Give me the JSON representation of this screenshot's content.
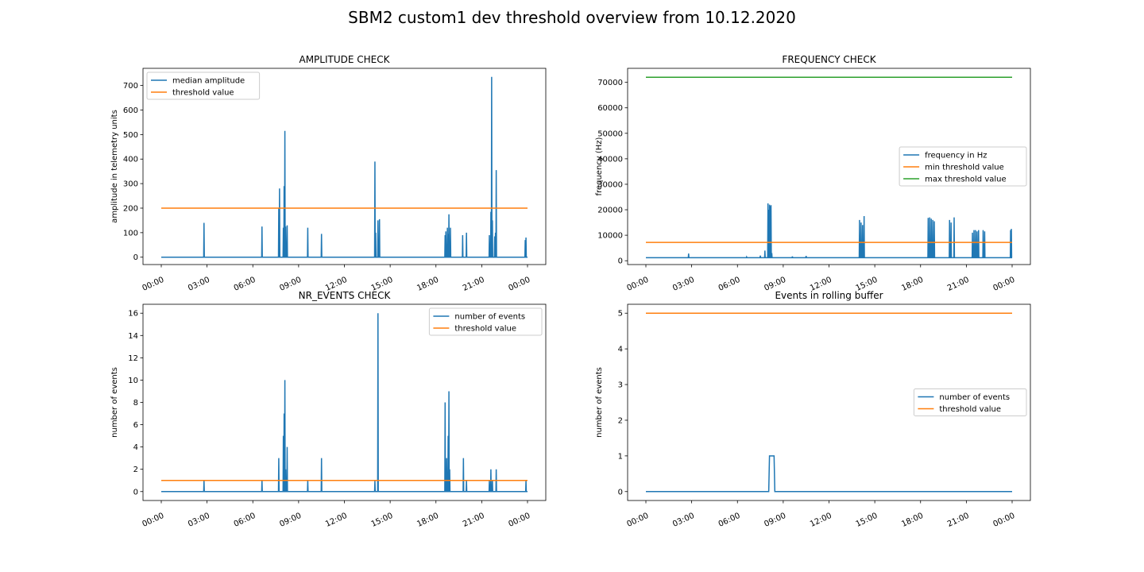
{
  "suptitle": "SBM2 custom1 dev threshold overview from 10.12.2020",
  "colors": {
    "blue": "#1f77b4",
    "orange": "#ff7f0e",
    "green": "#2ca02c"
  },
  "chart_data": [
    {
      "id": "amplitude",
      "type": "line",
      "title": "AMPLITUDE CHECK",
      "xlabel": "",
      "ylabel": "amplitude in telemetry units",
      "xlim": [
        0,
        24
      ],
      "ylim": [
        -30,
        770
      ],
      "yticks": [
        0,
        100,
        200,
        300,
        400,
        500,
        600,
        700
      ],
      "x_tick_values": [
        0,
        3,
        6,
        9,
        12,
        15,
        18,
        21,
        24
      ],
      "x_tick_labels": [
        "00:00",
        "03:00",
        "06:00",
        "09:00",
        "12:00",
        "15:00",
        "18:00",
        "21:00",
        "00:00"
      ],
      "legend": {
        "placement": "upper-left",
        "entries": [
          "median amplitude",
          "threshold value"
        ]
      },
      "series": [
        {
          "name": "median amplitude",
          "color": "#1f77b4",
          "baseline": 0,
          "x_range": [
            0,
            24.0
          ],
          "spikes": [
            [
              2.8,
              140
            ],
            [
              6.6,
              125
            ],
            [
              7.7,
              200
            ],
            [
              7.75,
              280
            ],
            [
              8.0,
              120
            ],
            [
              8.05,
              290
            ],
            [
              8.1,
              515
            ],
            [
              8.15,
              125
            ],
            [
              8.25,
              130
            ],
            [
              9.6,
              120
            ],
            [
              10.5,
              95
            ],
            [
              14.0,
              390
            ],
            [
              14.05,
              100
            ],
            [
              14.2,
              150
            ],
            [
              14.3,
              155
            ],
            [
              18.6,
              90
            ],
            [
              18.65,
              105
            ],
            [
              18.75,
              120
            ],
            [
              18.8,
              95
            ],
            [
              18.85,
              175
            ],
            [
              18.95,
              120
            ],
            [
              19.75,
              90
            ],
            [
              20.0,
              100
            ],
            [
              21.5,
              90
            ],
            [
              21.6,
              185
            ],
            [
              21.65,
              735
            ],
            [
              21.7,
              150
            ],
            [
              21.85,
              85
            ],
            [
              21.9,
              100
            ],
            [
              21.95,
              355
            ],
            [
              23.85,
              70
            ],
            [
              23.9,
              80
            ]
          ]
        },
        {
          "name": "threshold value",
          "color": "#ff7f0e",
          "constant": 200,
          "x_range": [
            0,
            24.0
          ]
        }
      ]
    },
    {
      "id": "frequency",
      "type": "line",
      "title": "FREQUENCY CHECK",
      "xlabel": "",
      "ylabel": "frequency (Hz)",
      "xlim": [
        0,
        24
      ],
      "ylim": [
        -1500,
        75500
      ],
      "yticks": [
        0,
        10000,
        20000,
        30000,
        40000,
        50000,
        60000,
        70000
      ],
      "x_tick_values": [
        0,
        3,
        6,
        9,
        12,
        15,
        18,
        21,
        24
      ],
      "x_tick_labels": [
        "00:00",
        "03:00",
        "06:00",
        "09:00",
        "12:00",
        "15:00",
        "18:00",
        "21:00",
        "00:00"
      ],
      "legend": {
        "placement": "center-right",
        "entries": [
          "frequency in Hz",
          "min threshold value",
          "max threshold value"
        ]
      },
      "series": [
        {
          "name": "frequency in Hz",
          "color": "#1f77b4",
          "baseline": 1200,
          "x_range": [
            0,
            24.0
          ],
          "spikes": [
            [
              2.8,
              2800
            ],
            [
              6.6,
              1500
            ],
            [
              7.5,
              2000
            ],
            [
              7.8,
              4000
            ],
            [
              8.0,
              22500
            ],
            [
              8.05,
              20000
            ],
            [
              8.1,
              22000
            ],
            [
              8.15,
              21500
            ],
            [
              8.2,
              21800
            ],
            [
              8.25,
              3000
            ],
            [
              9.6,
              1700
            ],
            [
              10.5,
              1900
            ],
            [
              14.0,
              16000
            ],
            [
              14.1,
              15000
            ],
            [
              14.2,
              14000
            ],
            [
              14.3,
              17500
            ],
            [
              18.5,
              16800
            ],
            [
              18.6,
              17000
            ],
            [
              18.7,
              16500
            ],
            [
              18.8,
              16000
            ],
            [
              18.9,
              15500
            ],
            [
              19.9,
              16000
            ],
            [
              20.0,
              15000
            ],
            [
              20.2,
              17000
            ],
            [
              21.4,
              11000
            ],
            [
              21.5,
              12000
            ],
            [
              21.6,
              12000
            ],
            [
              21.7,
              11500
            ],
            [
              21.8,
              12000
            ],
            [
              22.1,
              12000
            ],
            [
              22.2,
              11500
            ],
            [
              23.9,
              12000
            ],
            [
              23.95,
              12500
            ]
          ]
        },
        {
          "name": "min threshold value",
          "color": "#ff7f0e",
          "constant": 7200,
          "x_range": [
            0,
            24.0
          ]
        },
        {
          "name": "max threshold value",
          "color": "#2ca02c",
          "constant": 72000,
          "x_range": [
            0,
            24.0
          ]
        }
      ]
    },
    {
      "id": "nr_events",
      "type": "line",
      "title": "NR_EVENTS CHECK",
      "xlabel": "",
      "ylabel": "number of events",
      "xlim": [
        0,
        24
      ],
      "ylim": [
        -0.8,
        16.8
      ],
      "yticks": [
        0,
        2,
        4,
        6,
        8,
        10,
        12,
        14,
        16
      ],
      "x_tick_values": [
        0,
        3,
        6,
        9,
        12,
        15,
        18,
        21,
        24
      ],
      "x_tick_labels": [
        "00:00",
        "03:00",
        "06:00",
        "09:00",
        "12:00",
        "15:00",
        "18:00",
        "21:00",
        "00:00"
      ],
      "legend": {
        "placement": "upper-right",
        "entries": [
          "number of events",
          "threshold value"
        ]
      },
      "series": [
        {
          "name": "number of events",
          "color": "#1f77b4",
          "baseline": 0,
          "x_range": [
            0,
            24.0
          ],
          "spikes": [
            [
              2.8,
              1
            ],
            [
              6.6,
              1
            ],
            [
              7.7,
              3
            ],
            [
              8.0,
              5
            ],
            [
              8.05,
              7
            ],
            [
              8.1,
              10
            ],
            [
              8.15,
              2
            ],
            [
              8.25,
              4
            ],
            [
              9.6,
              1
            ],
            [
              10.5,
              3
            ],
            [
              14.0,
              1
            ],
            [
              14.2,
              16
            ],
            [
              18.6,
              8
            ],
            [
              18.7,
              3
            ],
            [
              18.8,
              5
            ],
            [
              18.85,
              9
            ],
            [
              18.9,
              2
            ],
            [
              19.8,
              3
            ],
            [
              20.0,
              1
            ],
            [
              21.5,
              1
            ],
            [
              21.6,
              2
            ],
            [
              21.7,
              1
            ],
            [
              21.95,
              2
            ],
            [
              23.9,
              1
            ]
          ]
        },
        {
          "name": "threshold value",
          "color": "#ff7f0e",
          "constant": 1,
          "x_range": [
            0,
            24.0
          ]
        }
      ]
    },
    {
      "id": "rolling",
      "type": "line",
      "title": "Events in rolling buffer",
      "xlabel": "",
      "ylabel": "number of events",
      "xlim": [
        0,
        24
      ],
      "ylim": [
        -0.25,
        5.25
      ],
      "yticks": [
        0,
        1,
        2,
        3,
        4,
        5
      ],
      "x_tick_values": [
        0,
        3,
        6,
        9,
        12,
        15,
        18,
        21,
        24
      ],
      "x_tick_labels": [
        "00:00",
        "03:00",
        "06:00",
        "09:00",
        "12:00",
        "15:00",
        "18:00",
        "21:00",
        "00:00"
      ],
      "legend": {
        "placement": "center-right",
        "entries": [
          "number of events",
          "threshold value"
        ]
      },
      "series": [
        {
          "name": "number of events",
          "color": "#1f77b4",
          "steps": [
            [
              0,
              0
            ],
            [
              8.05,
              0
            ],
            [
              8.1,
              1
            ],
            [
              8.4,
              1
            ],
            [
              8.45,
              0
            ],
            [
              24.0,
              0
            ]
          ]
        },
        {
          "name": "threshold value",
          "color": "#ff7f0e",
          "constant": 5,
          "x_range": [
            0,
            24.0
          ]
        }
      ]
    }
  ]
}
